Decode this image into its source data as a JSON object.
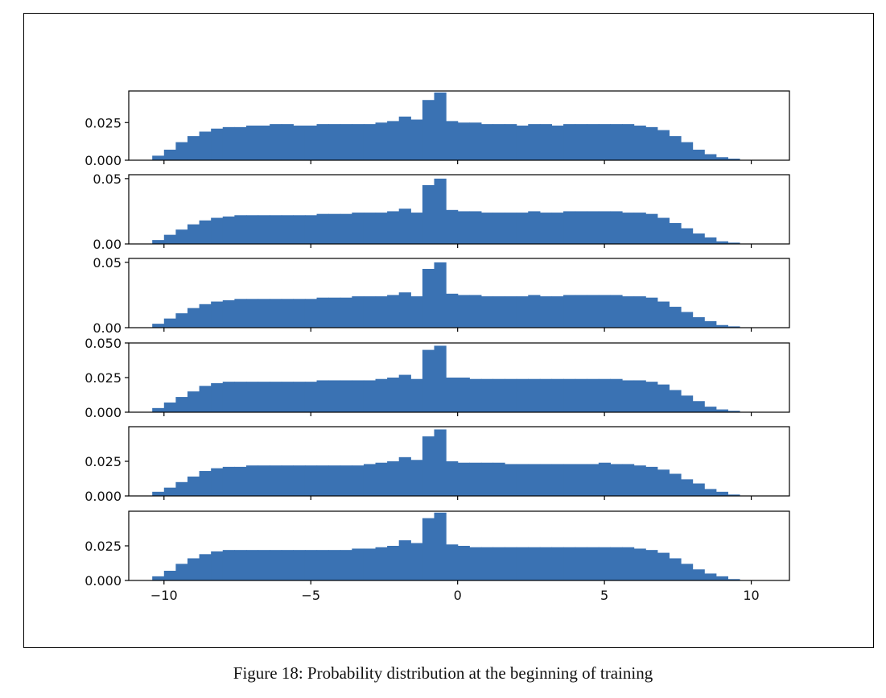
{
  "figure": {
    "caption": "Figure 18: Probability distribution at the beginning of training"
  },
  "colors": {
    "bar": "#3a72b3"
  },
  "chart_data": [
    {
      "type": "bar",
      "xlim": [
        -11.2,
        11.3
      ],
      "ylim": [
        0,
        0.046
      ],
      "xticks": [
        -10,
        -5,
        0,
        5,
        10
      ],
      "xtick_labels": [],
      "yticks": [
        0.0,
        0.025
      ],
      "ytick_labels": [
        "0.000",
        "0.025"
      ],
      "bin_width": 0.4,
      "x": [
        -10.2,
        -9.8,
        -9.4,
        -9.0,
        -8.6,
        -8.2,
        -7.8,
        -7.4,
        -7.0,
        -6.6,
        -6.2,
        -5.8,
        -5.4,
        -5.0,
        -4.6,
        -4.2,
        -3.8,
        -3.4,
        -3.0,
        -2.6,
        -2.2,
        -1.8,
        -1.4,
        -1.0,
        -0.6,
        -0.2,
        0.2,
        0.6,
        1.0,
        1.4,
        1.8,
        2.2,
        2.6,
        3.0,
        3.4,
        3.8,
        4.2,
        4.6,
        5.0,
        5.4,
        5.8,
        6.2,
        6.6,
        7.0,
        7.4,
        7.8,
        8.2,
        8.6,
        9.0,
        9.4
      ],
      "values": [
        0.003,
        0.007,
        0.012,
        0.016,
        0.019,
        0.021,
        0.022,
        0.022,
        0.023,
        0.023,
        0.024,
        0.024,
        0.023,
        0.023,
        0.024,
        0.024,
        0.024,
        0.024,
        0.024,
        0.025,
        0.026,
        0.029,
        0.027,
        0.04,
        0.045,
        0.026,
        0.025,
        0.025,
        0.024,
        0.024,
        0.024,
        0.023,
        0.024,
        0.024,
        0.023,
        0.024,
        0.024,
        0.024,
        0.024,
        0.024,
        0.024,
        0.023,
        0.022,
        0.02,
        0.016,
        0.012,
        0.007,
        0.004,
        0.002,
        0.001
      ]
    },
    {
      "type": "bar",
      "xlim": [
        -11.2,
        11.3
      ],
      "ylim": [
        0,
        0.053
      ],
      "xticks": [
        -10,
        -5,
        0,
        5,
        10
      ],
      "xtick_labels": [],
      "yticks": [
        0.0,
        0.05
      ],
      "ytick_labels": [
        "0.00",
        "0.05"
      ],
      "bin_width": 0.4,
      "x": [
        -10.2,
        -9.8,
        -9.4,
        -9.0,
        -8.6,
        -8.2,
        -7.8,
        -7.4,
        -7.0,
        -6.6,
        -6.2,
        -5.8,
        -5.4,
        -5.0,
        -4.6,
        -4.2,
        -3.8,
        -3.4,
        -3.0,
        -2.6,
        -2.2,
        -1.8,
        -1.4,
        -1.0,
        -0.6,
        -0.2,
        0.2,
        0.6,
        1.0,
        1.4,
        1.8,
        2.2,
        2.6,
        3.0,
        3.4,
        3.8,
        4.2,
        4.6,
        5.0,
        5.4,
        5.8,
        6.2,
        6.6,
        7.0,
        7.4,
        7.8,
        8.2,
        8.6,
        9.0,
        9.4
      ],
      "values": [
        0.003,
        0.007,
        0.011,
        0.015,
        0.018,
        0.02,
        0.021,
        0.022,
        0.022,
        0.022,
        0.022,
        0.022,
        0.022,
        0.022,
        0.023,
        0.023,
        0.023,
        0.024,
        0.024,
        0.024,
        0.025,
        0.027,
        0.024,
        0.045,
        0.05,
        0.026,
        0.025,
        0.025,
        0.024,
        0.024,
        0.024,
        0.024,
        0.025,
        0.024,
        0.024,
        0.025,
        0.025,
        0.025,
        0.025,
        0.025,
        0.024,
        0.024,
        0.023,
        0.02,
        0.016,
        0.012,
        0.008,
        0.005,
        0.002,
        0.001
      ]
    },
    {
      "type": "bar",
      "xlim": [
        -11.2,
        11.3
      ],
      "ylim": [
        0,
        0.053
      ],
      "xticks": [
        -10,
        -5,
        0,
        5,
        10
      ],
      "xtick_labels": [],
      "yticks": [
        0.0,
        0.05
      ],
      "ytick_labels": [
        "0.00",
        "0.05"
      ],
      "bin_width": 0.4,
      "x": [
        -10.2,
        -9.8,
        -9.4,
        -9.0,
        -8.6,
        -8.2,
        -7.8,
        -7.4,
        -7.0,
        -6.6,
        -6.2,
        -5.8,
        -5.4,
        -5.0,
        -4.6,
        -4.2,
        -3.8,
        -3.4,
        -3.0,
        -2.6,
        -2.2,
        -1.8,
        -1.4,
        -1.0,
        -0.6,
        -0.2,
        0.2,
        0.6,
        1.0,
        1.4,
        1.8,
        2.2,
        2.6,
        3.0,
        3.4,
        3.8,
        4.2,
        4.6,
        5.0,
        5.4,
        5.8,
        6.2,
        6.6,
        7.0,
        7.4,
        7.8,
        8.2,
        8.6,
        9.0,
        9.4
      ],
      "values": [
        0.003,
        0.007,
        0.011,
        0.015,
        0.018,
        0.02,
        0.021,
        0.022,
        0.022,
        0.022,
        0.022,
        0.022,
        0.022,
        0.022,
        0.023,
        0.023,
        0.023,
        0.024,
        0.024,
        0.024,
        0.025,
        0.027,
        0.024,
        0.045,
        0.05,
        0.026,
        0.025,
        0.025,
        0.024,
        0.024,
        0.024,
        0.024,
        0.025,
        0.024,
        0.024,
        0.025,
        0.025,
        0.025,
        0.025,
        0.025,
        0.024,
        0.024,
        0.023,
        0.02,
        0.016,
        0.012,
        0.008,
        0.005,
        0.002,
        0.001
      ]
    },
    {
      "type": "bar",
      "xlim": [
        -11.2,
        11.3
      ],
      "ylim": [
        0,
        0.05
      ],
      "xticks": [
        -10,
        -5,
        0,
        5,
        10
      ],
      "xtick_labels": [],
      "yticks": [
        0.0,
        0.025,
        0.05
      ],
      "ytick_labels": [
        "0.000",
        "0.025",
        "0.050"
      ],
      "bin_width": 0.4,
      "x": [
        -10.2,
        -9.8,
        -9.4,
        -9.0,
        -8.6,
        -8.2,
        -7.8,
        -7.4,
        -7.0,
        -6.6,
        -6.2,
        -5.8,
        -5.4,
        -5.0,
        -4.6,
        -4.2,
        -3.8,
        -3.4,
        -3.0,
        -2.6,
        -2.2,
        -1.8,
        -1.4,
        -1.0,
        -0.6,
        -0.2,
        0.2,
        0.6,
        1.0,
        1.4,
        1.8,
        2.2,
        2.6,
        3.0,
        3.4,
        3.8,
        4.2,
        4.6,
        5.0,
        5.4,
        5.8,
        6.2,
        6.6,
        7.0,
        7.4,
        7.8,
        8.2,
        8.6,
        9.0,
        9.4
      ],
      "values": [
        0.003,
        0.007,
        0.011,
        0.015,
        0.019,
        0.021,
        0.022,
        0.022,
        0.022,
        0.022,
        0.022,
        0.022,
        0.022,
        0.022,
        0.023,
        0.023,
        0.023,
        0.023,
        0.023,
        0.024,
        0.025,
        0.027,
        0.024,
        0.045,
        0.048,
        0.025,
        0.025,
        0.024,
        0.024,
        0.024,
        0.024,
        0.024,
        0.024,
        0.024,
        0.024,
        0.024,
        0.024,
        0.024,
        0.024,
        0.024,
        0.023,
        0.023,
        0.022,
        0.02,
        0.016,
        0.012,
        0.008,
        0.004,
        0.002,
        0.001
      ]
    },
    {
      "type": "bar",
      "xlim": [
        -11.2,
        11.3
      ],
      "ylim": [
        0,
        0.05
      ],
      "xticks": [
        -10,
        -5,
        0,
        5,
        10
      ],
      "xtick_labels": [],
      "yticks": [
        0.0,
        0.025
      ],
      "ytick_labels": [
        "0.000",
        "0.025"
      ],
      "bin_width": 0.4,
      "x": [
        -10.2,
        -9.8,
        -9.4,
        -9.0,
        -8.6,
        -8.2,
        -7.8,
        -7.4,
        -7.0,
        -6.6,
        -6.2,
        -5.8,
        -5.4,
        -5.0,
        -4.6,
        -4.2,
        -3.8,
        -3.4,
        -3.0,
        -2.6,
        -2.2,
        -1.8,
        -1.4,
        -1.0,
        -0.6,
        -0.2,
        0.2,
        0.6,
        1.0,
        1.4,
        1.8,
        2.2,
        2.6,
        3.0,
        3.4,
        3.8,
        4.2,
        4.6,
        5.0,
        5.4,
        5.8,
        6.2,
        6.6,
        7.0,
        7.4,
        7.8,
        8.2,
        8.6,
        9.0,
        9.4
      ],
      "values": [
        0.003,
        0.006,
        0.01,
        0.014,
        0.018,
        0.02,
        0.021,
        0.021,
        0.022,
        0.022,
        0.022,
        0.022,
        0.022,
        0.022,
        0.022,
        0.022,
        0.022,
        0.022,
        0.023,
        0.024,
        0.025,
        0.028,
        0.026,
        0.043,
        0.048,
        0.025,
        0.024,
        0.024,
        0.024,
        0.024,
        0.023,
        0.023,
        0.023,
        0.023,
        0.023,
        0.023,
        0.023,
        0.023,
        0.024,
        0.023,
        0.023,
        0.022,
        0.021,
        0.019,
        0.016,
        0.012,
        0.009,
        0.005,
        0.003,
        0.001
      ]
    },
    {
      "type": "bar",
      "xlim": [
        -11.2,
        11.3
      ],
      "ylim": [
        0,
        0.05
      ],
      "xticks": [
        -10,
        -5,
        0,
        5,
        10
      ],
      "xtick_labels": [
        "−10",
        "−5",
        "0",
        "5",
        "10"
      ],
      "yticks": [
        0.0,
        0.025
      ],
      "ytick_labels": [
        "0.000",
        "0.025"
      ],
      "bin_width": 0.4,
      "x": [
        -10.2,
        -9.8,
        -9.4,
        -9.0,
        -8.6,
        -8.2,
        -7.8,
        -7.4,
        -7.0,
        -6.6,
        -6.2,
        -5.8,
        -5.4,
        -5.0,
        -4.6,
        -4.2,
        -3.8,
        -3.4,
        -3.0,
        -2.6,
        -2.2,
        -1.8,
        -1.4,
        -1.0,
        -0.6,
        -0.2,
        0.2,
        0.6,
        1.0,
        1.4,
        1.8,
        2.2,
        2.6,
        3.0,
        3.4,
        3.8,
        4.2,
        4.6,
        5.0,
        5.4,
        5.8,
        6.2,
        6.6,
        7.0,
        7.4,
        7.8,
        8.2,
        8.6,
        9.0,
        9.4
      ],
      "values": [
        0.003,
        0.007,
        0.012,
        0.016,
        0.019,
        0.021,
        0.022,
        0.022,
        0.022,
        0.022,
        0.022,
        0.022,
        0.022,
        0.022,
        0.022,
        0.022,
        0.022,
        0.023,
        0.023,
        0.024,
        0.025,
        0.029,
        0.027,
        0.045,
        0.049,
        0.026,
        0.025,
        0.024,
        0.024,
        0.024,
        0.024,
        0.024,
        0.024,
        0.024,
        0.024,
        0.024,
        0.024,
        0.024,
        0.024,
        0.024,
        0.024,
        0.023,
        0.022,
        0.02,
        0.016,
        0.012,
        0.008,
        0.005,
        0.003,
        0.001
      ]
    }
  ]
}
